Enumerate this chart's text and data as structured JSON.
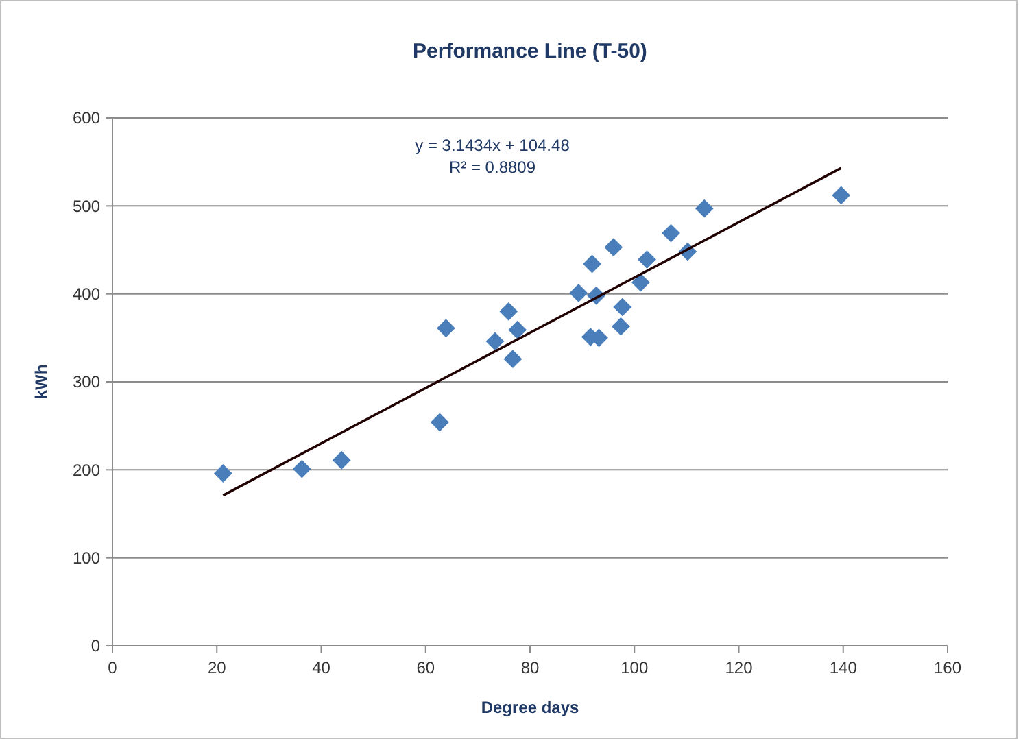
{
  "chart_data": {
    "type": "scatter",
    "title": "Performance Line (T-50)",
    "xlabel": "Degree days",
    "ylabel": "kWh",
    "annotations": [
      "y = 3.1434x + 104.48",
      "R² = 0.8809"
    ],
    "xlim": [
      0,
      160
    ],
    "xticks": [
      0,
      20,
      40,
      60,
      80,
      100,
      120,
      140,
      160
    ],
    "ylim": [
      0,
      600
    ],
    "yticks": [
      0,
      100,
      200,
      300,
      400,
      500,
      600
    ],
    "grid": "y",
    "line_style": "solid",
    "series": [
      {
        "marker": "diamond",
        "color": "#4a7ebb",
        "x": [
          21.2,
          36.3,
          43.9,
          62.7,
          63.9,
          73.3,
          75.9,
          77.6,
          76.7,
          89.3,
          92.7,
          91.9,
          96.0,
          91.6,
          93.2,
          97.7,
          97.4,
          101.2,
          102.4,
          107.0,
          110.2,
          113.4,
          139.6
        ],
        "values": [
          196,
          201,
          211,
          254,
          361,
          346,
          380,
          359,
          326,
          401,
          398,
          434,
          453,
          351,
          350,
          385,
          363,
          413,
          439,
          469,
          448,
          497,
          512
        ]
      },
      {
        "type": "line",
        "color": "#200000",
        "x": [
          21.2,
          139.6
        ],
        "values": [
          171,
          543
        ]
      }
    ]
  }
}
